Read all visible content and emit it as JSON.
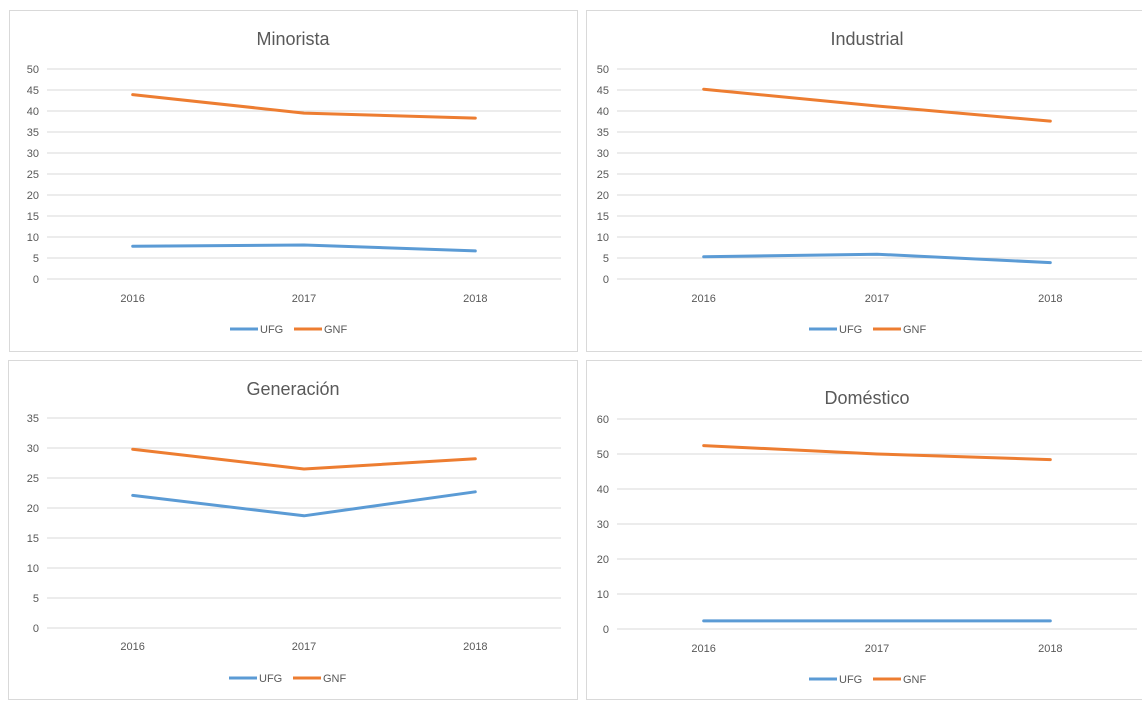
{
  "chart_data": [
    {
      "type": "line",
      "title": "Minorista",
      "categories": [
        "2016",
        "2017",
        "2018"
      ],
      "ylim": [
        0,
        50
      ],
      "yticks": [
        0,
        5,
        10,
        15,
        20,
        25,
        30,
        35,
        40,
        45,
        50
      ],
      "grid": true,
      "legend": "bottom",
      "series": [
        {
          "name": "UFG",
          "color": "#5b9bd5",
          "values": [
            7.8,
            8.1,
            6.7
          ]
        },
        {
          "name": "GNF",
          "color": "#ed7d31",
          "values": [
            43.9,
            39.5,
            38.3
          ]
        }
      ]
    },
    {
      "type": "line",
      "title": "Industrial",
      "categories": [
        "2016",
        "2017",
        "2018"
      ],
      "ylim": [
        0,
        50
      ],
      "yticks": [
        0,
        5,
        10,
        15,
        20,
        25,
        30,
        35,
        40,
        45,
        50
      ],
      "grid": true,
      "legend": "bottom",
      "series": [
        {
          "name": "UFG",
          "color": "#5b9bd5",
          "values": [
            5.3,
            5.9,
            3.9
          ]
        },
        {
          "name": "GNF",
          "color": "#ed7d31",
          "values": [
            45.2,
            41.2,
            37.6
          ]
        }
      ]
    },
    {
      "type": "line",
      "title": "Generación",
      "categories": [
        "2016",
        "2017",
        "2018"
      ],
      "ylim": [
        0,
        35
      ],
      "yticks": [
        0,
        5,
        10,
        15,
        20,
        25,
        30,
        35
      ],
      "grid": true,
      "legend": "bottom",
      "series": [
        {
          "name": "UFG",
          "color": "#5b9bd5",
          "values": [
            22.1,
            18.7,
            22.7
          ]
        },
        {
          "name": "GNF",
          "color": "#ed7d31",
          "values": [
            29.8,
            26.5,
            28.2
          ]
        }
      ]
    },
    {
      "type": "line",
      "title": "Doméstico",
      "categories": [
        "2016",
        "2017",
        "2018"
      ],
      "ylim": [
        0,
        60
      ],
      "yticks": [
        0,
        10,
        20,
        30,
        40,
        50,
        60
      ],
      "grid": true,
      "legend": "bottom",
      "series": [
        {
          "name": "UFG",
          "color": "#5b9bd5",
          "values": [
            2.3,
            2.3,
            2.3
          ]
        },
        {
          "name": "GNF",
          "color": "#ed7d31",
          "values": [
            52.4,
            50.0,
            48.4
          ]
        }
      ]
    }
  ]
}
